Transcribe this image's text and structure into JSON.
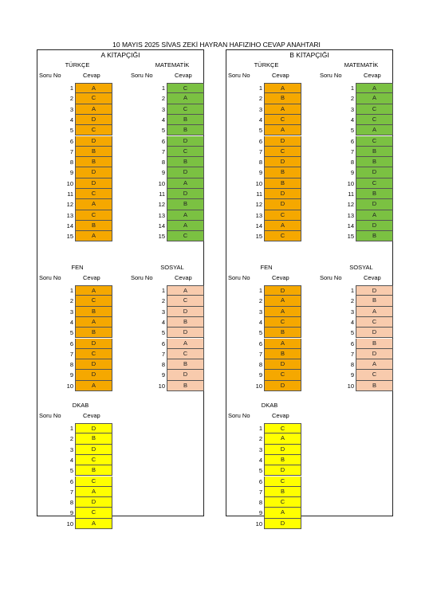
{
  "title": "10 MAYIS 2025 SİVAS ZEKİ HAYRAN HAFIZIHO CEVAP ANAHTARI",
  "labels": {
    "soru_no": "Soru No",
    "cevap": "Cevap"
  },
  "books": [
    {
      "name": "A KİTAPÇIĞI",
      "sections": [
        {
          "subject": "TÜRKÇE",
          "answers": [
            "A",
            "C",
            "A",
            "D",
            "C",
            "D",
            "B",
            "B",
            "D",
            "D",
            "C",
            "A",
            "C",
            "B",
            "A"
          ]
        },
        {
          "subject": "MATEMATİK",
          "answers": [
            "C",
            "A",
            "C",
            "B",
            "B",
            "D",
            "C",
            "B",
            "D",
            "A",
            "D",
            "B",
            "A",
            "A",
            "C"
          ]
        },
        {
          "subject": "FEN",
          "answers": [
            "A",
            "C",
            "B",
            "A",
            "B",
            "D",
            "C",
            "D",
            "D",
            "A"
          ]
        },
        {
          "subject": "SOSYAL",
          "answers": [
            "A",
            "C",
            "D",
            "B",
            "D",
            "A",
            "C",
            "B",
            "D",
            "B"
          ]
        },
        {
          "subject": "DKAB",
          "answers": [
            "D",
            "B",
            "D",
            "C",
            "B",
            "C",
            "A",
            "D",
            "C",
            "A"
          ]
        }
      ]
    },
    {
      "name": "B KİTAPÇIĞI",
      "sections": [
        {
          "subject": "TÜRKÇE",
          "answers": [
            "A",
            "B",
            "A",
            "C",
            "A",
            "D",
            "C",
            "D",
            "B",
            "B",
            "D",
            "D",
            "C",
            "A",
            "C"
          ]
        },
        {
          "subject": "MATEMATİK",
          "answers": [
            "A",
            "A",
            "C",
            "C",
            "A",
            "C",
            "B",
            "B",
            "D",
            "C",
            "B",
            "D",
            "A",
            "D",
            "B"
          ]
        },
        {
          "subject": "FEN",
          "answers": [
            "D",
            "A",
            "A",
            "C",
            "B",
            "A",
            "B",
            "D",
            "C",
            "D"
          ]
        },
        {
          "subject": "SOSYAL",
          "answers": [
            "D",
            "B",
            "A",
            "C",
            "D",
            "B",
            "D",
            "A",
            "C",
            "B"
          ]
        },
        {
          "subject": "DKAB",
          "answers": [
            "C",
            "A",
            "D",
            "B",
            "D",
            "C",
            "B",
            "C",
            "A",
            "D"
          ]
        }
      ]
    }
  ],
  "colors": {
    "TÜRKÇE": "#f5a800",
    "MATEMATİK": "#7bc142",
    "FEN": "#f5a800",
    "SOSYAL": "#f8cbad",
    "DKAB": "#ffff00"
  }
}
